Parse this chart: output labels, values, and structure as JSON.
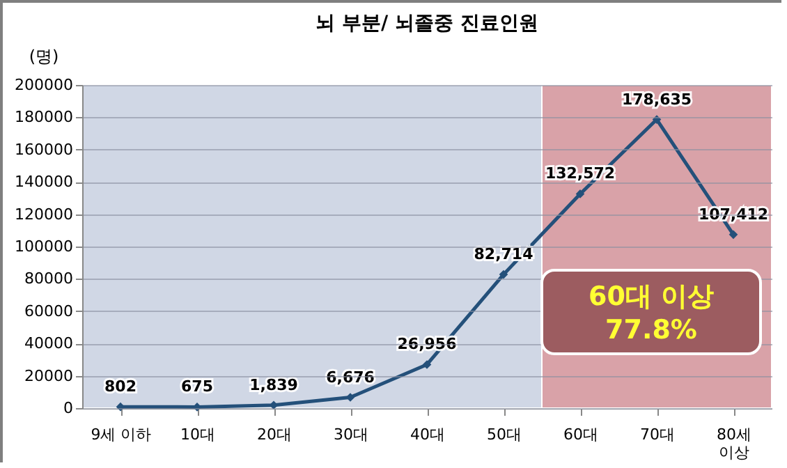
{
  "chart_data": {
    "type": "line",
    "title": "뇌 부분/ 뇌졸중 진료인원",
    "ylabel": "(명)",
    "categories": [
      "9세 이하",
      "10대",
      "20대",
      "30대",
      "40대",
      "50대",
      "60대",
      "70대",
      "80세 이상"
    ],
    "series": [
      {
        "color": "#24507a",
        "values": [
          802,
          675,
          1839,
          6676,
          26956,
          82714,
          132572,
          178635,
          107412
        ],
        "value_labels": [
          "802",
          "675",
          "1,839",
          "6,676",
          "26,956",
          "82,714",
          "132,572",
          "178,635",
          "107,412"
        ]
      }
    ],
    "ylim": [
      0,
      200000
    ],
    "yticks": [
      0,
      20000,
      40000,
      60000,
      80000,
      100000,
      120000,
      140000,
      160000,
      180000,
      200000
    ],
    "grid": "y",
    "marker": "diamond",
    "line_style": "solid",
    "bands": [
      {
        "axis": "x",
        "from": "9세 이하",
        "to": "50대",
        "color": "#d0d7e5"
      },
      {
        "axis": "x",
        "from": "60대",
        "to": "80세 이상",
        "color": "#d9a2a8",
        "label": "60대 이상 77.8%"
      }
    ]
  }
}
